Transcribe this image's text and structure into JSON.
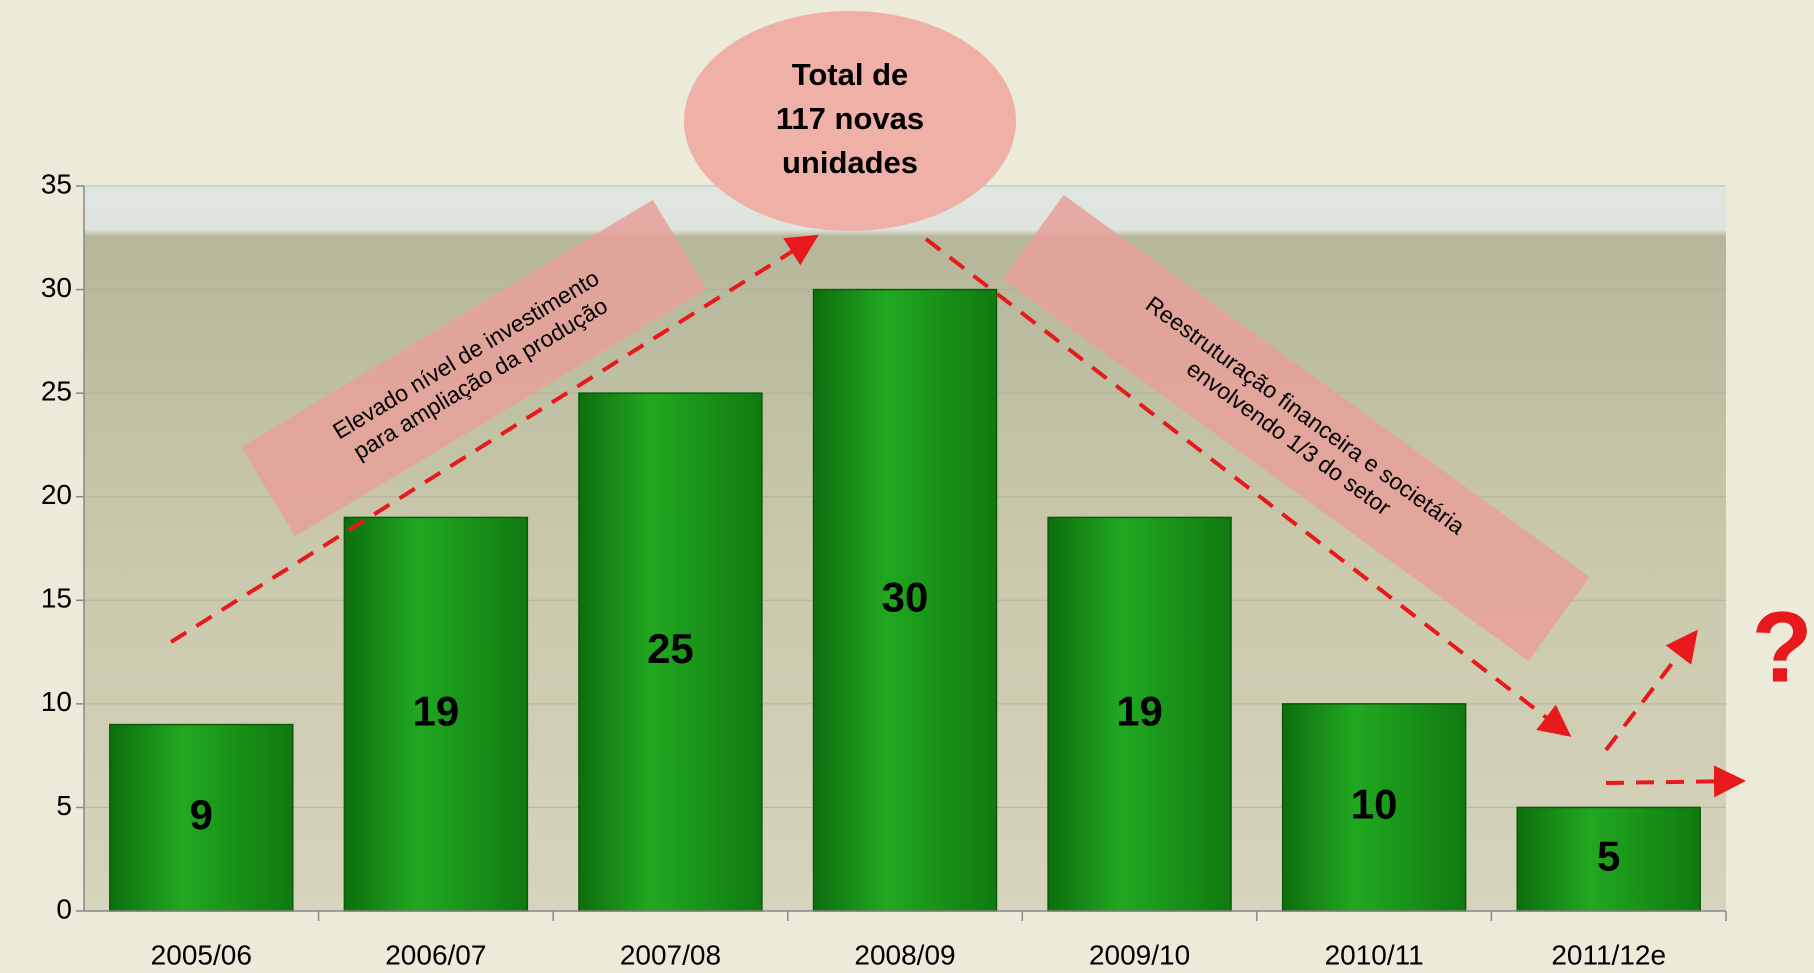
{
  "chart_data": {
    "type": "bar",
    "categories": [
      "2005/06",
      "2006/07",
      "2007/08",
      "2008/09",
      "2009/10",
      "2010/11",
      "2011/12e"
    ],
    "values": [
      9,
      19,
      25,
      30,
      19,
      10,
      5
    ],
    "color": "#1e9b1e",
    "ylim": [
      0,
      35
    ],
    "yticks": [
      0,
      5,
      10,
      15,
      20,
      25,
      30,
      35
    ],
    "grid": true,
    "annotations": {
      "total": [
        "Total de",
        "117 novas",
        "unidades"
      ],
      "rising": [
        "Elevado nível de investimento",
        "para ampliação da produção"
      ],
      "falling": [
        "Reestruturação financeira e societária",
        "envolvendo 1/3 do setor"
      ],
      "question": "?"
    }
  }
}
